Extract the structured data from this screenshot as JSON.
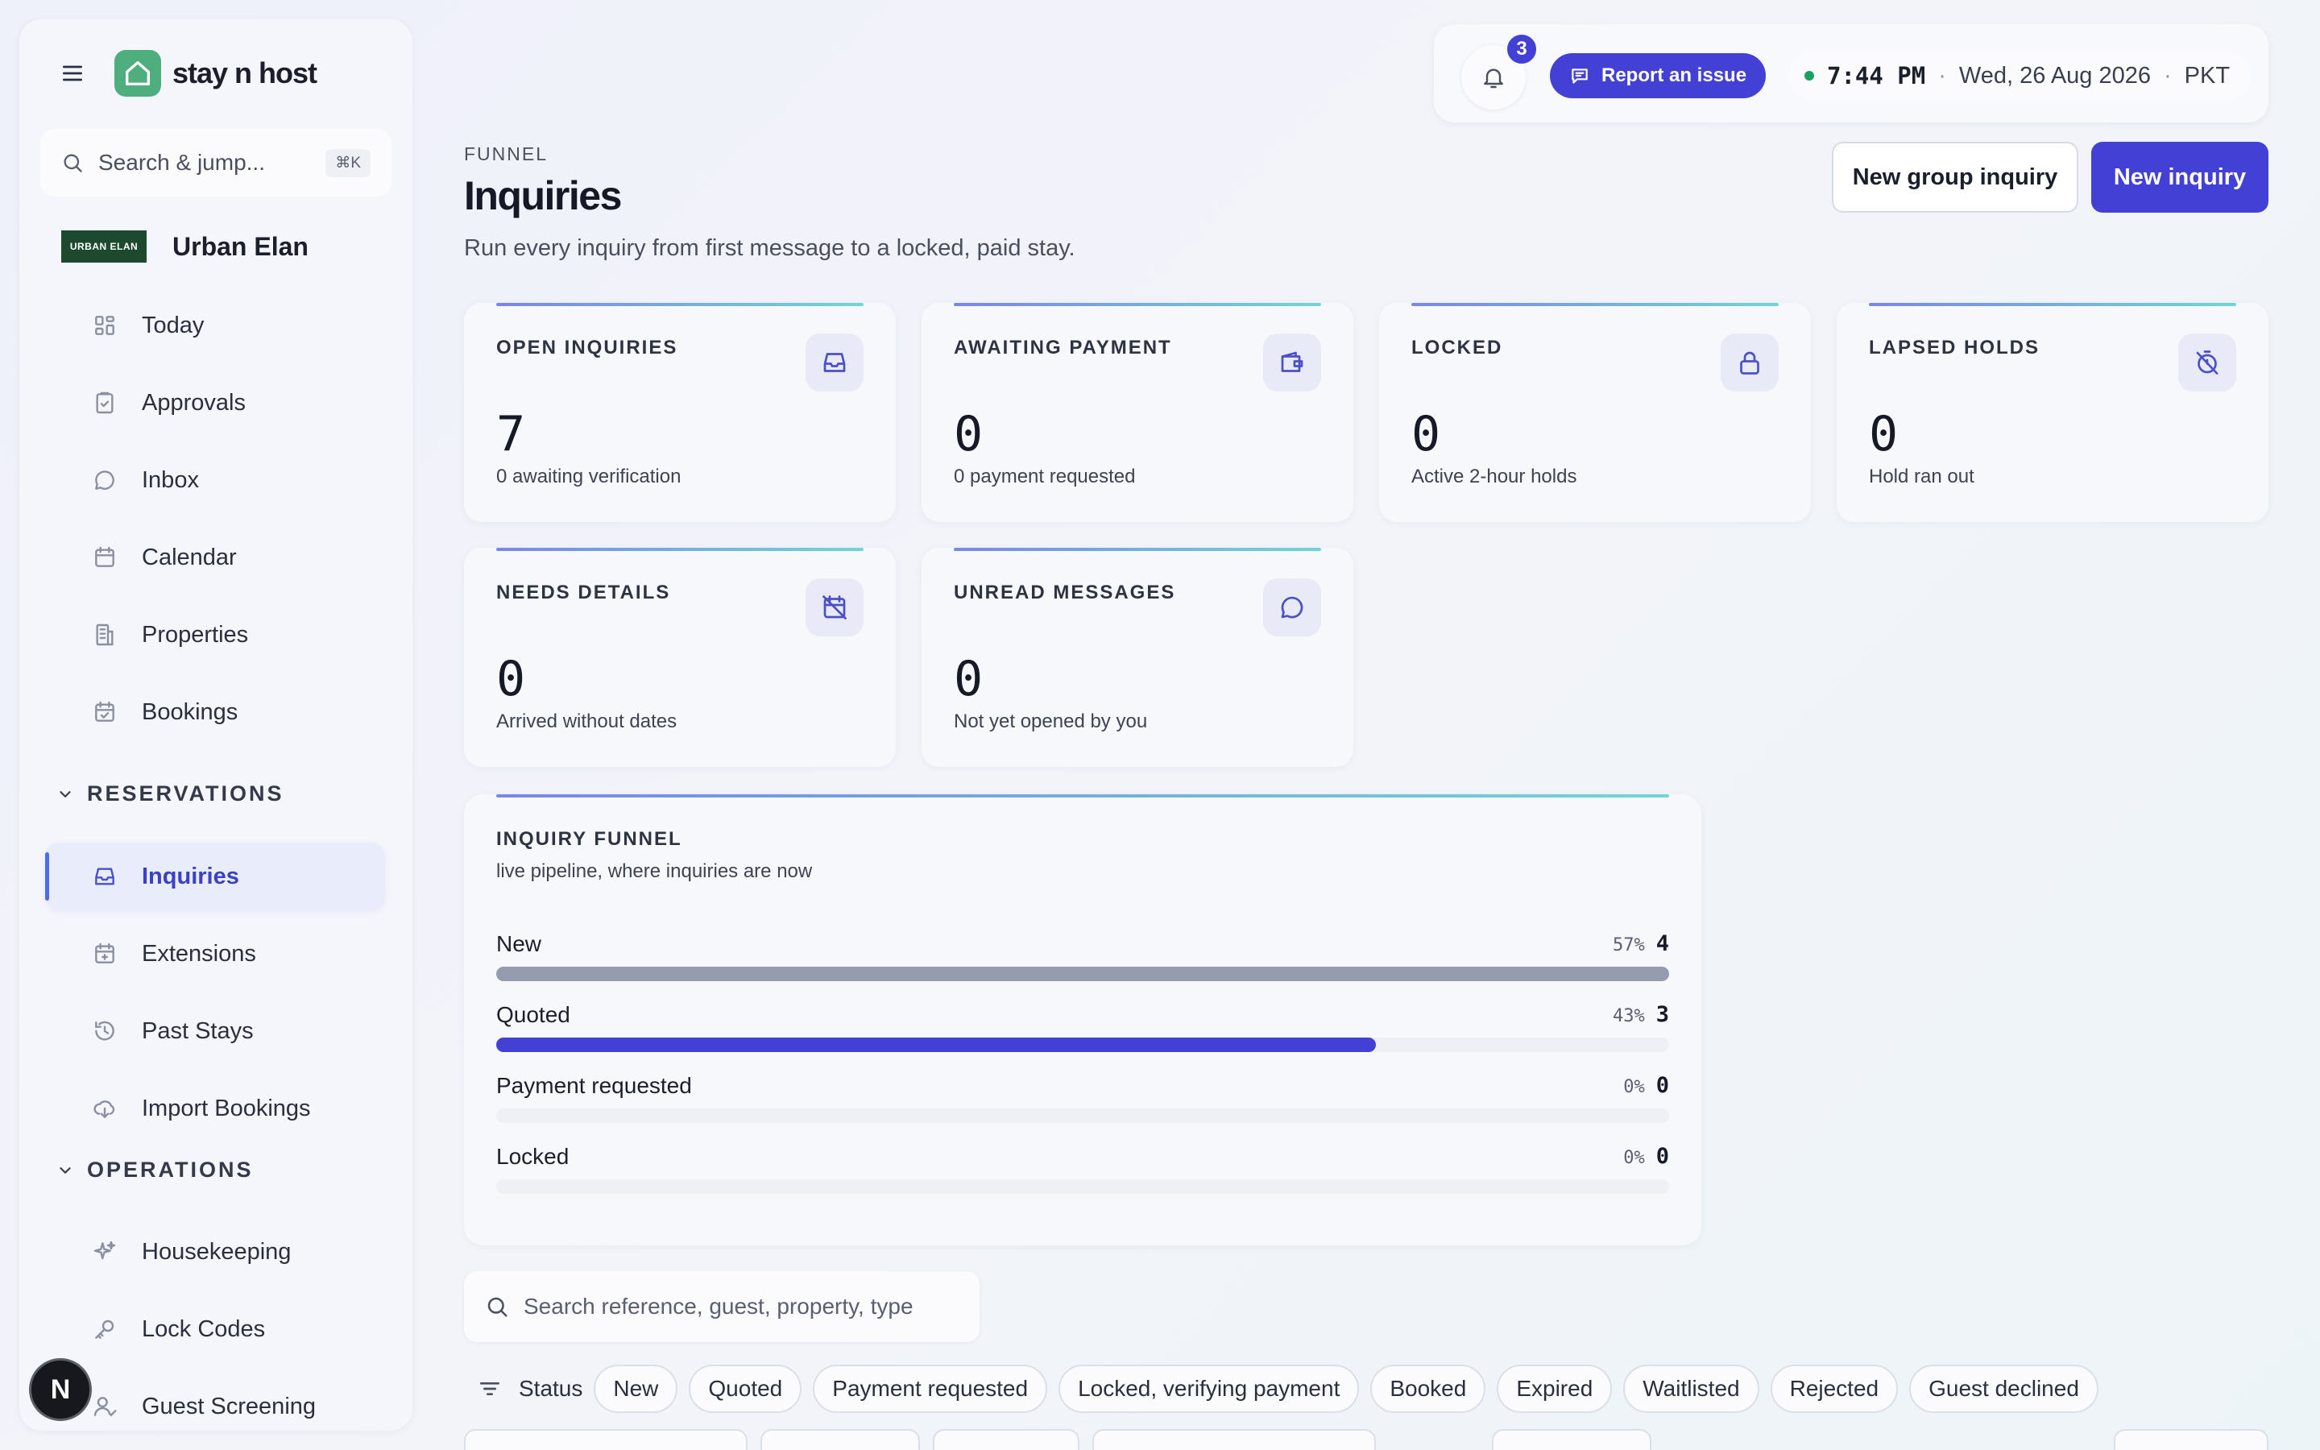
{
  "app": {
    "brand": "stay n host",
    "org_logo_text": "URBAN ELAN",
    "org_name": "Urban Elan"
  },
  "sidebar": {
    "search_placeholder": "Search & jump...",
    "search_shortcut": "⌘K",
    "items_top": [
      {
        "label": "Today",
        "icon": "grid-icon"
      },
      {
        "label": "Approvals",
        "icon": "clipboard-check-icon"
      },
      {
        "label": "Inbox",
        "icon": "chat-bubble-icon"
      },
      {
        "label": "Calendar",
        "icon": "calendar-icon"
      },
      {
        "label": "Properties",
        "icon": "building-icon"
      },
      {
        "label": "Bookings",
        "icon": "calendar-check-icon"
      }
    ],
    "section_reservations": "RESERVATIONS",
    "items_reservations": [
      {
        "label": "Inquiries",
        "icon": "inbox-tray-icon",
        "active": true
      },
      {
        "label": "Extensions",
        "icon": "calendar-plus-icon"
      },
      {
        "label": "Past Stays",
        "icon": "history-icon"
      },
      {
        "label": "Import Bookings",
        "icon": "cloud-download-icon"
      }
    ],
    "section_operations": "OPERATIONS",
    "items_operations": [
      {
        "label": "Housekeeping",
        "icon": "sparkles-icon"
      },
      {
        "label": "Lock Codes",
        "icon": "key-icon"
      },
      {
        "label": "Guest Screening",
        "icon": "user-check-icon"
      }
    ],
    "avatar_initial": "N"
  },
  "topbar": {
    "notification_count": "3",
    "report_label": "Report an issue",
    "time": "7:44 PM",
    "date": "Wed, 26 Aug 2026",
    "timezone": "PKT",
    "status_color": "#18a165"
  },
  "header": {
    "eyebrow": "FUNNEL",
    "title": "Inquiries",
    "subtitle": "Run every inquiry from first message to a locked, paid stay.",
    "btn_group": "New group inquiry",
    "btn_new": "New inquiry"
  },
  "stats": [
    {
      "label": "OPEN INQUIRIES",
      "value": "7",
      "sub": "0 awaiting verification",
      "icon": "inbox-tray-icon"
    },
    {
      "label": "AWAITING PAYMENT",
      "value": "0",
      "sub": "0 payment requested",
      "icon": "wallet-icon"
    },
    {
      "label": "LOCKED",
      "value": "0",
      "sub": "Active 2-hour holds",
      "icon": "lock-icon"
    },
    {
      "label": "LAPSED HOLDS",
      "value": "0",
      "sub": "Hold ran out",
      "icon": "timer-off-icon"
    },
    {
      "label": "NEEDS DETAILS",
      "value": "0",
      "sub": "Arrived without dates",
      "icon": "calendar-off-icon"
    },
    {
      "label": "UNREAD MESSAGES",
      "value": "0",
      "sub": "Not yet opened by you",
      "icon": "chat-bubble-icon"
    }
  ],
  "funnel": {
    "title": "INQUIRY FUNNEL",
    "subtitle": "live pipeline, where inquiries are now",
    "stages": [
      {
        "label": "New",
        "pct": "57%",
        "count": "4",
        "fraction": 1.0,
        "color": "#959cb0"
      },
      {
        "label": "Quoted",
        "pct": "43%",
        "count": "3",
        "fraction": 0.75,
        "color": "#4340d6"
      },
      {
        "label": "Payment requested",
        "pct": "0%",
        "count": "0",
        "fraction": 0,
        "color": "#4340d6"
      },
      {
        "label": "Locked",
        "pct": "0%",
        "count": "0",
        "fraction": 0,
        "color": "#4340d6"
      }
    ]
  },
  "list": {
    "search_placeholder": "Search reference, guest, property, type",
    "status_label": "Status",
    "status_options": [
      "New",
      "Quoted",
      "Payment requested",
      "Locked, verifying payment",
      "Booked",
      "Expired",
      "Waitlisted",
      "Rejected",
      "Guest declined"
    ]
  },
  "colors": {
    "accent": "#4340d6",
    "brand_green": "#4fae7e"
  }
}
